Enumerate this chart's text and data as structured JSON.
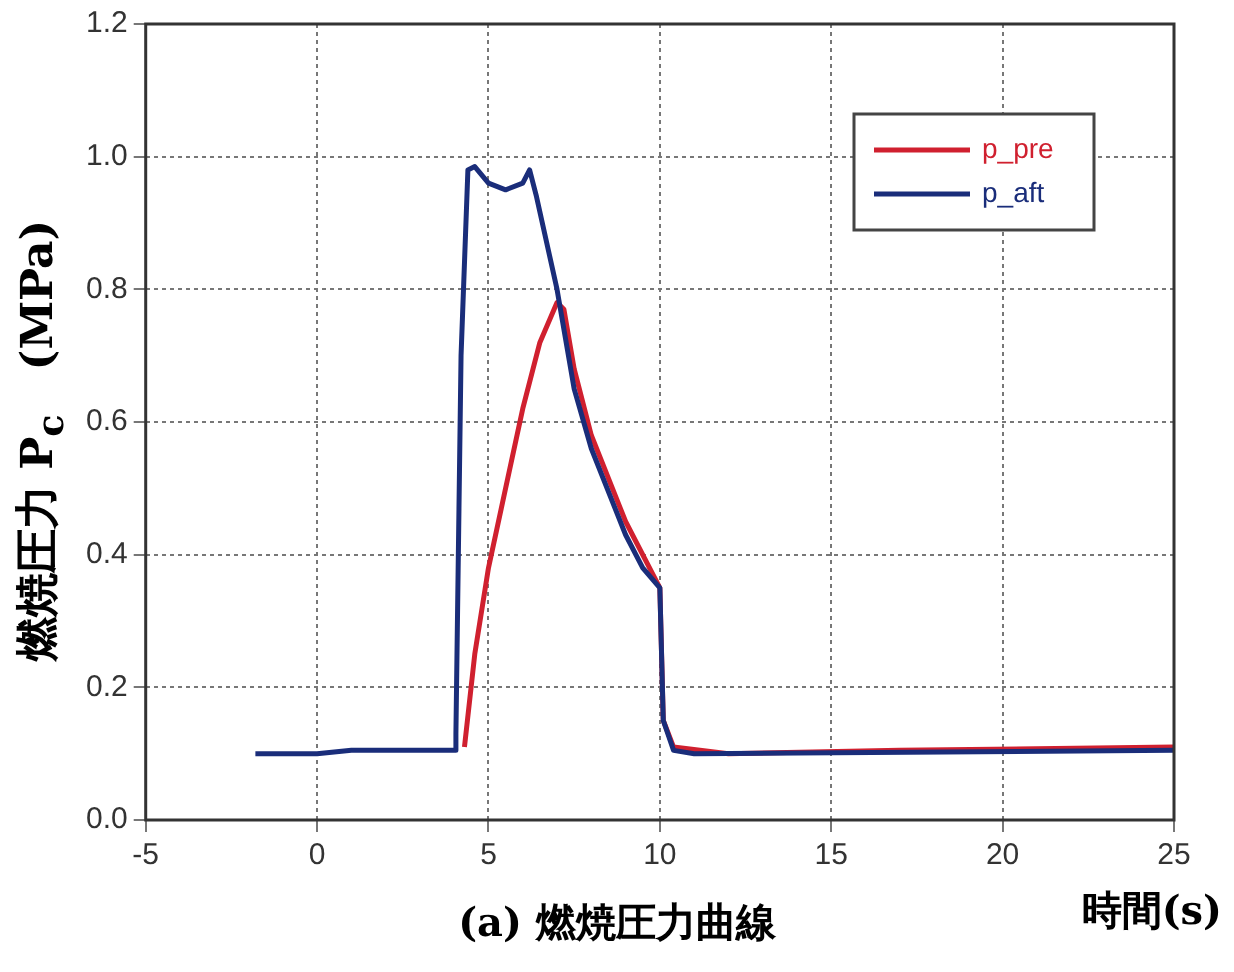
{
  "chart_data": {
    "type": "line",
    "title": "(a) 燃焼圧力曲線",
    "xlabel": "時間(s)",
    "ylabel": "燃焼圧力 P$_{c}$　(MPa)",
    "xlim": [
      -5,
      25
    ],
    "xticks": [
      -5,
      0,
      5,
      10,
      15,
      20,
      25
    ],
    "ylim": [
      0,
      1.2
    ],
    "yticks": [
      {
        "value": 0,
        "label": "0.0"
      },
      {
        "value": 0.2,
        "label": "0.2"
      },
      {
        "value": 0.4,
        "label": "0.4"
      },
      {
        "value": 0.6,
        "label": "0.6"
      },
      {
        "value": 0.8,
        "label": "0.8"
      },
      {
        "value": 1,
        "label": "1.0"
      },
      {
        "value": 1.2,
        "label": "1.2"
      }
    ],
    "grid": true,
    "legend": "top right",
    "marker": "none",
    "line_style": "solid",
    "series": [
      {
        "name": "p_pre",
        "color": "#d0202f",
        "x": [
          4.3,
          4.6,
          5,
          5.5,
          6,
          6.5,
          7,
          7.2,
          7.5,
          8,
          9,
          10,
          10.1,
          10.4,
          12,
          17,
          25
        ],
        "values": [
          0.11,
          0.25,
          0.38,
          0.5,
          0.62,
          0.72,
          0.78,
          0.77,
          0.68,
          0.58,
          0.45,
          0.35,
          0.15,
          0.11,
          0.1,
          0.105,
          0.11
        ]
      },
      {
        "name": "p_aft",
        "color": "#1a2d7a",
        "x": [
          -1.8,
          0,
          1,
          4,
          4.05,
          4.2,
          4.4,
          4.6,
          5,
          5.5,
          6,
          6.2,
          6.4,
          7,
          7.5,
          8,
          9,
          9.5,
          10,
          10.1,
          10.4,
          11,
          25
        ],
        "values": [
          0.1,
          0.1,
          0.105,
          0.105,
          0.13,
          0.7,
          0.98,
          0.985,
          0.96,
          0.95,
          0.96,
          0.98,
          0.94,
          0.8,
          0.65,
          0.56,
          0.43,
          0.38,
          0.35,
          0.15,
          0.105,
          0.1,
          0.105
        ]
      }
    ]
  }
}
